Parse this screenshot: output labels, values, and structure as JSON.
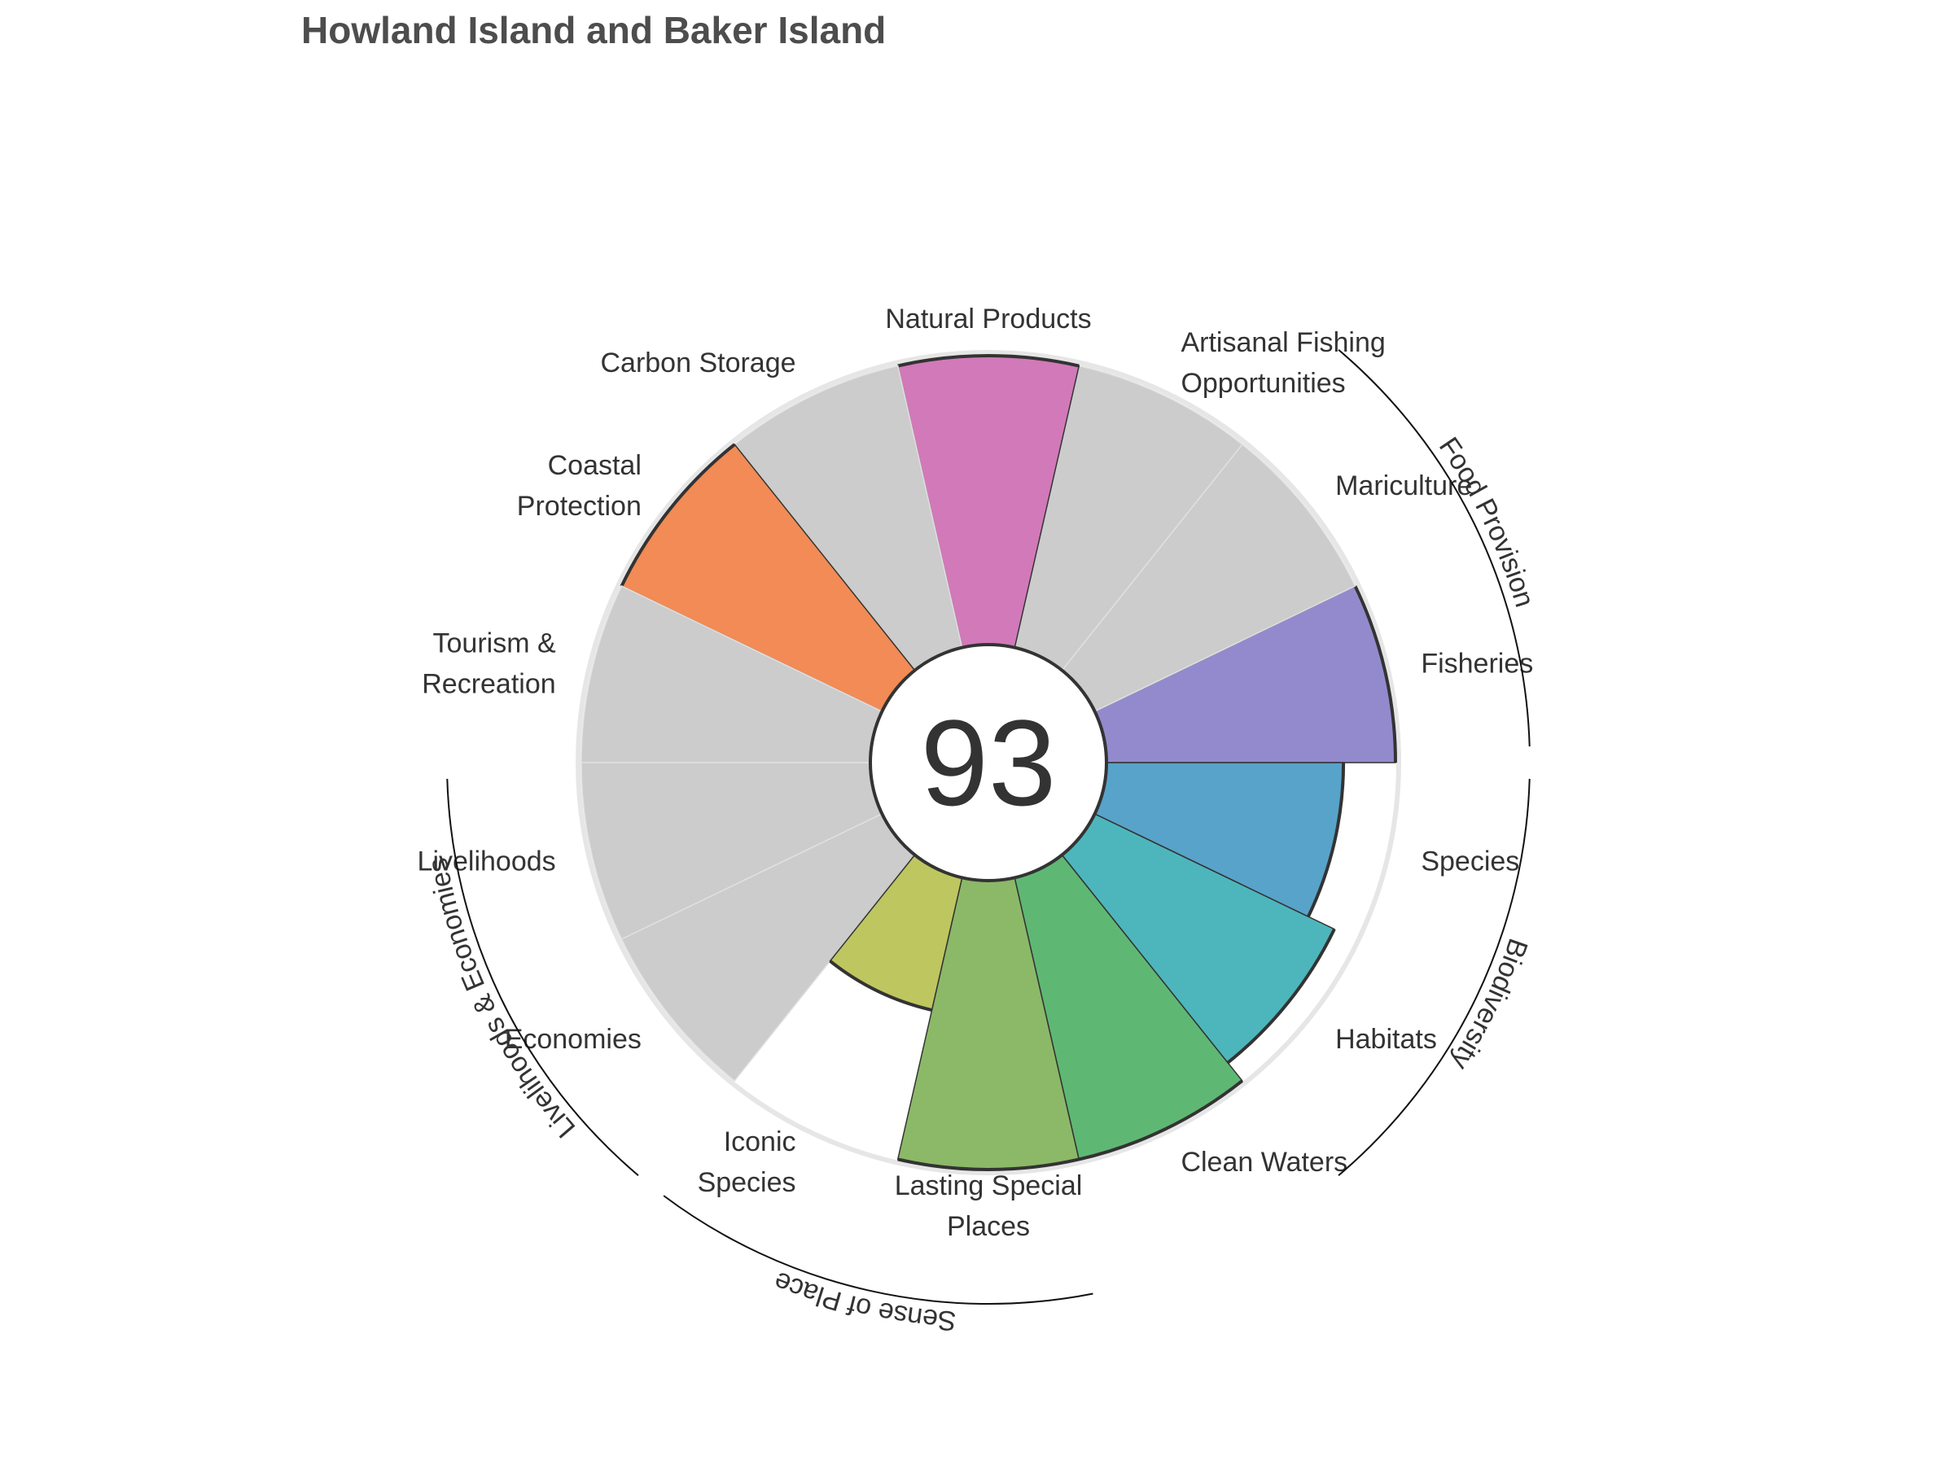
{
  "title": "Howland Island and Baker Island",
  "chart_data": {
    "type": "polar-bar",
    "title": "Howland Island and Baker Island",
    "score": "93",
    "rlim": [
      0,
      100
    ],
    "categories": [
      {
        "lines": [
          "Fisheries"
        ],
        "value": 100,
        "color": "#938ACD",
        "na": false
      },
      {
        "lines": [
          "Mariculture"
        ],
        "value": 100,
        "color": "#CCCCCC",
        "na": true
      },
      {
        "lines": [
          "Artisanal Fishing",
          "Opportunities"
        ],
        "value": 100,
        "color": "#CCCCCC",
        "na": true
      },
      {
        "lines": [
          "Natural Products"
        ],
        "value": 100,
        "color": "#D279B9",
        "na": false
      },
      {
        "lines": [
          "Carbon Storage"
        ],
        "value": 100,
        "color": "#CCCCCC",
        "na": true
      },
      {
        "lines": [
          "Coastal",
          "Protection"
        ],
        "value": 100,
        "color": "#F28B55",
        "na": false
      },
      {
        "lines": [
          "Tourism &",
          "Recreation"
        ],
        "value": 100,
        "color": "#CCCCCC",
        "na": true
      },
      {
        "lines": [
          "Livelihoods"
        ],
        "value": 100,
        "color": "#CCCCCC",
        "na": true
      },
      {
        "lines": [
          "Economies"
        ],
        "value": 100,
        "color": "#CCCCCC",
        "na": true
      },
      {
        "lines": [
          "Iconic",
          "Species"
        ],
        "value": 47,
        "color": "#BEC660",
        "na": false
      },
      {
        "lines": [
          "Lasting Special",
          "Places"
        ],
        "value": 100,
        "color": "#8BB968",
        "na": false
      },
      {
        "lines": [
          "Clean Waters"
        ],
        "value": 100,
        "color": "#5EB873",
        "na": false
      },
      {
        "lines": [
          "Habitats"
        ],
        "value": 92,
        "color": "#4DB6BC",
        "na": false
      },
      {
        "lines": [
          "Species"
        ],
        "value": 82,
        "color": "#58A3CA",
        "na": false
      }
    ],
    "groups": [
      {
        "name": "Food Provision",
        "members": [
          0,
          1
        ]
      },
      {
        "name": "Biodiversity",
        "members": [
          12,
          13
        ]
      },
      {
        "name": "Sense of Place",
        "members": [
          9,
          10
        ]
      },
      {
        "name": "Livelihoods & Economies",
        "members": [
          7,
          8
        ]
      }
    ]
  }
}
